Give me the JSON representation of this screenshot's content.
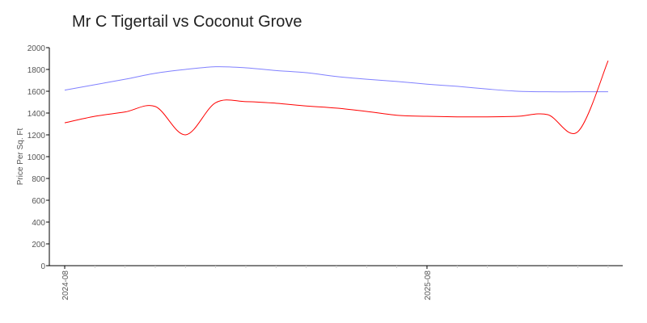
{
  "chart_data": {
    "type": "line",
    "title": "Mr C Tigertail vs Coconut Grove",
    "xlabel": "",
    "ylabel": "Price Per Sq. Ft",
    "ylim": [
      0,
      2000
    ],
    "yticks": [
      "0",
      "200",
      "400",
      "600",
      "800",
      "1000",
      "1200",
      "1400",
      "1600",
      "1800",
      "2000"
    ],
    "xtick_labels": [
      "2024-08",
      "2025-08"
    ],
    "x": [
      "2024-08",
      "2024-09",
      "2024-10",
      "2024-11",
      "2024-12",
      "2025-01",
      "2025-02",
      "2025-03",
      "2025-04",
      "2025-05",
      "2025-06",
      "2025-07",
      "2025-08",
      "2025-09",
      "2025-10",
      "2025-11",
      "2025-12",
      "2026-01",
      "2026-02"
    ],
    "grid": false,
    "series": [
      {
        "color": "#8080ff",
        "values": [
          1610,
          1660,
          1710,
          1765,
          1800,
          1825,
          1815,
          1790,
          1770,
          1735,
          1710,
          1690,
          1665,
          1645,
          1620,
          1600,
          1595,
          1595,
          1595
        ]
      },
      {
        "color": "#ff0000",
        "values": [
          1310,
          1370,
          1410,
          1460,
          1200,
          1495,
          1505,
          1490,
          1465,
          1445,
          1415,
          1380,
          1370,
          1365,
          1365,
          1370,
          1385,
          1230,
          1880
        ]
      }
    ]
  }
}
